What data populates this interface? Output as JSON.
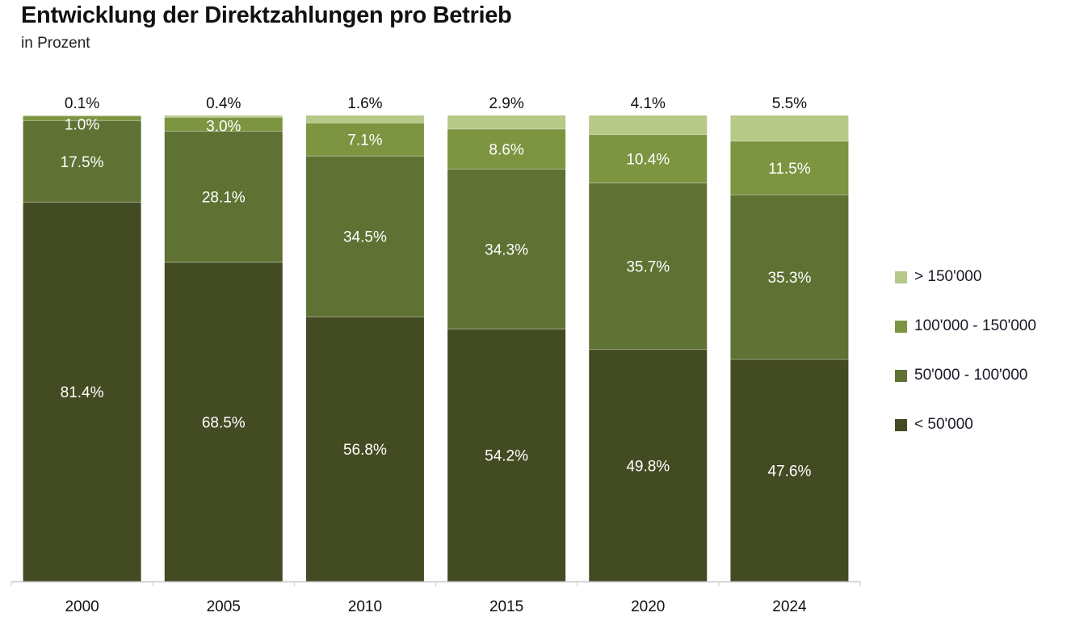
{
  "chart_data": {
    "type": "bar",
    "stacked": true,
    "title": "Entwicklung der Direktzahlungen pro Betrieb",
    "subtitle": "in Prozent",
    "xlabel": "",
    "ylabel": "",
    "ylim": [
      0,
      100
    ],
    "grid": false,
    "legend_position": "right",
    "categories": [
      "2000",
      "2005",
      "2010",
      "2015",
      "2020",
      "2024"
    ],
    "series": [
      {
        "name": "< 50'000",
        "color": "#434b22",
        "label_color": "#ffffff",
        "values": [
          81.4,
          68.5,
          56.8,
          54.2,
          49.8,
          47.6
        ],
        "labels": [
          "81.4%",
          "68.5%",
          "56.8%",
          "54.2%",
          "49.8%",
          "47.6%"
        ]
      },
      {
        "name": "50'000 - 100'000",
        "color": "#5f7233",
        "label_color": "#ffffff",
        "values": [
          17.5,
          28.1,
          34.5,
          34.3,
          35.7,
          35.3
        ],
        "labels": [
          "17.5%",
          "28.1%",
          "34.5%",
          "34.3%",
          "35.7%",
          "35.3%"
        ]
      },
      {
        "name": "100'000 - 150'000",
        "color": "#7d9441",
        "label_color": "#ffffff",
        "values": [
          1.0,
          3.0,
          7.1,
          8.6,
          10.4,
          11.5
        ],
        "labels": [
          "1.0%",
          "3.0%",
          "7.1%",
          "8.6%",
          "10.4%",
          "11.5%"
        ]
      },
      {
        "name": "> 150'000",
        "color": "#b6c986",
        "label_color": "#111111",
        "values": [
          0.1,
          0.4,
          1.6,
          2.9,
          4.1,
          5.5
        ],
        "labels": [
          "0.1%",
          "0.4%",
          "1.6%",
          "2.9%",
          "4.1%",
          "5.5%"
        ]
      }
    ],
    "legend_order": [
      "> 150'000",
      "100'000 - 150'000",
      "50'000 - 100'000",
      "< 50'000"
    ]
  }
}
